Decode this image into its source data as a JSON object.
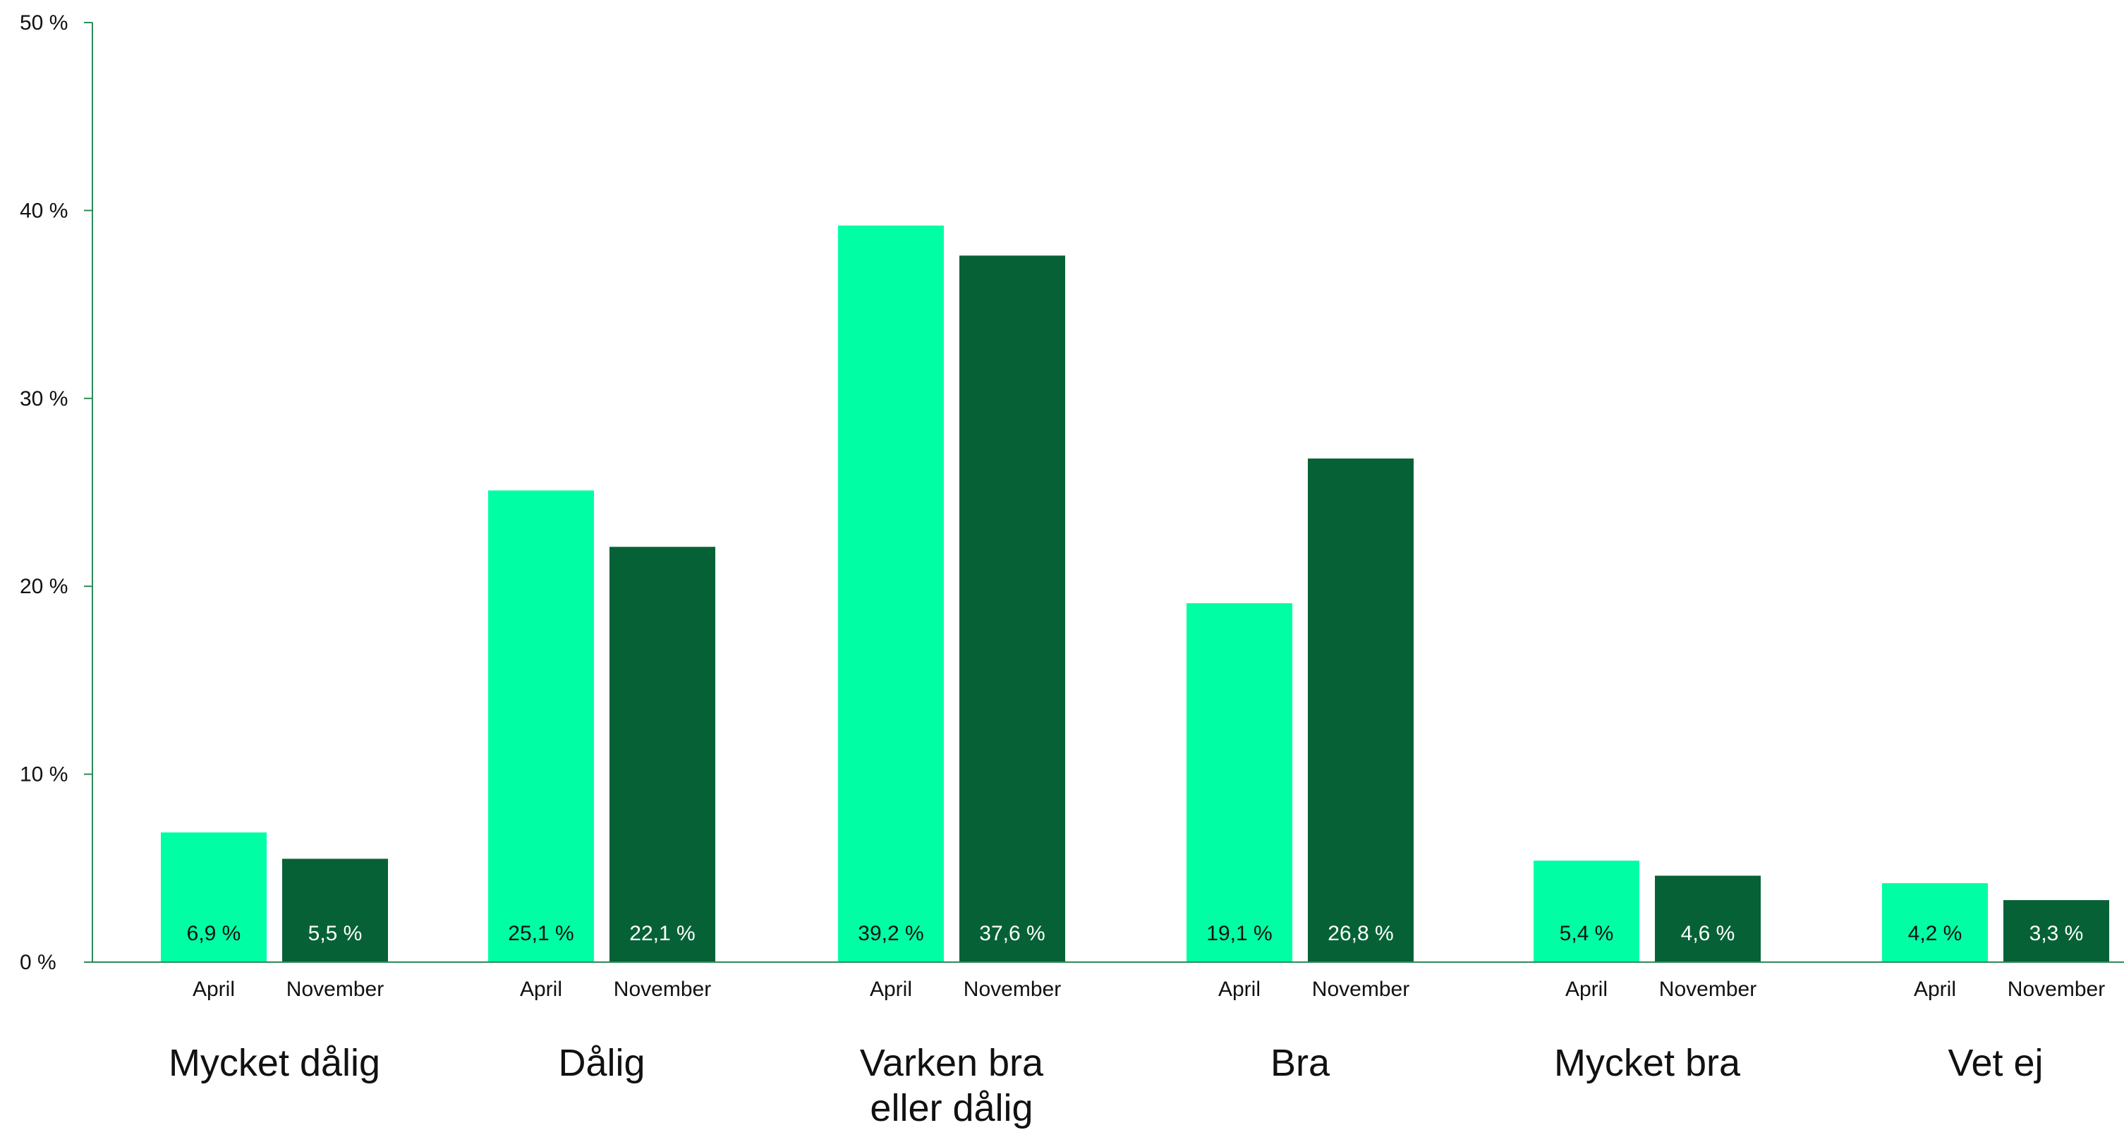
{
  "chart_data": {
    "type": "bar",
    "title": "",
    "xlabel": "",
    "ylabel": "",
    "ylim": [
      0,
      50
    ],
    "y_ticks": [
      {
        "value": 0,
        "label": "0 %"
      },
      {
        "value": 10,
        "label": "10 %"
      },
      {
        "value": 20,
        "label": "20 %"
      },
      {
        "value": 30,
        "label": "30 %"
      },
      {
        "value": 40,
        "label": "40 %"
      },
      {
        "value": 50,
        "label": "50 %"
      }
    ],
    "categories": [
      {
        "lines": [
          "Mycket dålig"
        ]
      },
      {
        "lines": [
          "Dålig"
        ]
      },
      {
        "lines": [
          "Varken bra",
          "eller dålig"
        ]
      },
      {
        "lines": [
          "Bra"
        ]
      },
      {
        "lines": [
          "Mycket bra"
        ]
      },
      {
        "lines": [
          "Vet ej"
        ]
      }
    ],
    "series": [
      {
        "name": "April",
        "color": "#00ffa5",
        "label_color": "#111111",
        "values": [
          6.9,
          25.1,
          39.2,
          19.1,
          5.4,
          4.2
        ],
        "value_labels": [
          "6,9 %",
          "25,1 %",
          "39,2 %",
          "19,1 %",
          "5,4 %",
          "4,2 %"
        ]
      },
      {
        "name": "November",
        "color": "#066236",
        "label_color": "#ffffff",
        "values": [
          5.5,
          22.1,
          37.6,
          26.8,
          4.6,
          3.3
        ],
        "value_labels": [
          "5,5 %",
          "22,1 %",
          "37,6 %",
          "26,8 %",
          "4,6 %",
          "3,3 %"
        ]
      }
    ],
    "axis_color": "#2e8b57",
    "grid": false,
    "legend": "none"
  }
}
